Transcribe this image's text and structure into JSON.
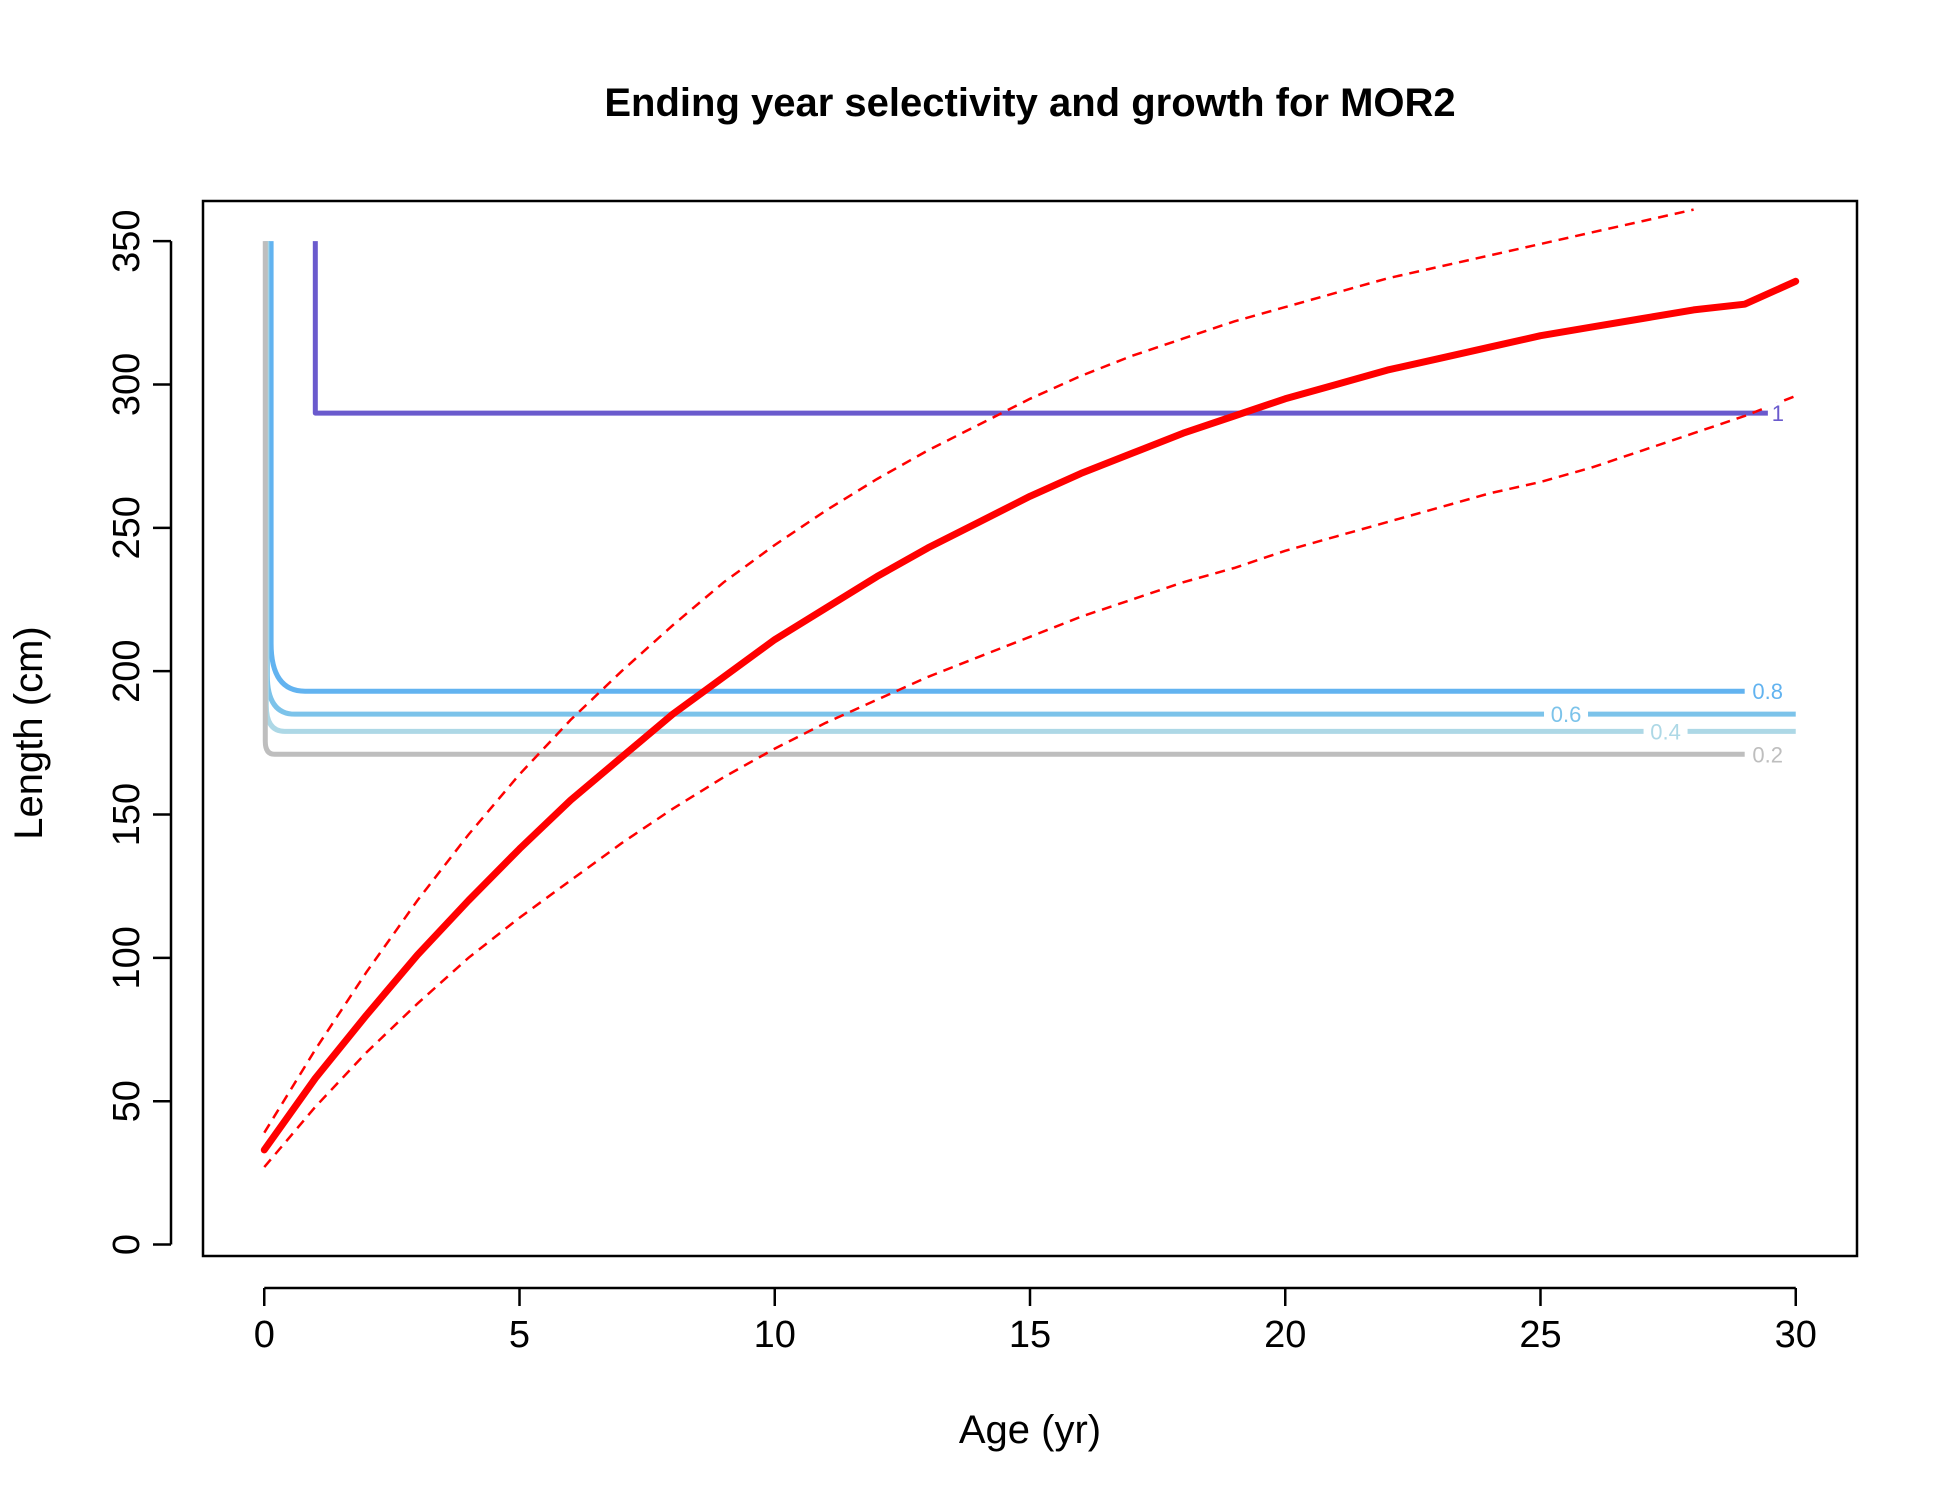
{
  "chart_data": {
    "type": "line",
    "title": "Ending year selectivity and growth for MOR2",
    "xlabel": "Age (yr)",
    "ylabel": "Length (cm)",
    "xlim": [
      -1.2,
      31.2
    ],
    "ylim": [
      -4,
      364
    ],
    "x_ticks": [
      0,
      5,
      10,
      15,
      20,
      25,
      30
    ],
    "y_ticks": [
      0,
      50,
      100,
      150,
      200,
      250,
      300,
      350
    ],
    "grid": false,
    "legend": "none",
    "growth_mean": {
      "color": "#ff0000",
      "points": [
        [
          0,
          33
        ],
        [
          1,
          58
        ],
        [
          2,
          80
        ],
        [
          3,
          101
        ],
        [
          4,
          120
        ],
        [
          5,
          138
        ],
        [
          6,
          155
        ],
        [
          7,
          170
        ],
        [
          8,
          185
        ],
        [
          9,
          198
        ],
        [
          10,
          211
        ],
        [
          11,
          222
        ],
        [
          12,
          233
        ],
        [
          13,
          243
        ],
        [
          14,
          252
        ],
        [
          15,
          261
        ],
        [
          16,
          269
        ],
        [
          17,
          276
        ],
        [
          18,
          283
        ],
        [
          19,
          289
        ],
        [
          20,
          295
        ],
        [
          21,
          300
        ],
        [
          22,
          305
        ],
        [
          23,
          309
        ],
        [
          24,
          313
        ],
        [
          25,
          317
        ],
        [
          26,
          320
        ],
        [
          27,
          323
        ],
        [
          28,
          326
        ],
        [
          29,
          328
        ],
        [
          30,
          336
        ]
      ]
    },
    "growth_upper": {
      "color": "#ff0000",
      "points": [
        [
          0,
          39
        ],
        [
          1,
          68
        ],
        [
          2,
          95
        ],
        [
          3,
          120
        ],
        [
          4,
          143
        ],
        [
          5,
          164
        ],
        [
          6,
          183
        ],
        [
          7,
          200
        ],
        [
          8,
          216
        ],
        [
          9,
          231
        ],
        [
          10,
          244
        ],
        [
          11,
          256
        ],
        [
          12,
          267
        ],
        [
          13,
          277
        ],
        [
          14,
          286
        ],
        [
          15,
          295
        ],
        [
          16,
          303
        ],
        [
          17,
          310
        ],
        [
          18,
          316
        ],
        [
          19,
          322
        ],
        [
          20,
          327
        ],
        [
          21,
          332
        ],
        [
          22,
          337
        ],
        [
          23,
          341
        ],
        [
          24,
          345
        ],
        [
          25,
          349
        ],
        [
          26,
          353
        ],
        [
          27,
          357
        ],
        [
          28,
          361
        ]
      ]
    },
    "growth_lower": {
      "color": "#ff0000",
      "points": [
        [
          0,
          27
        ],
        [
          1,
          48
        ],
        [
          2,
          67
        ],
        [
          3,
          84
        ],
        [
          4,
          100
        ],
        [
          5,
          114
        ],
        [
          6,
          127
        ],
        [
          7,
          140
        ],
        [
          8,
          152
        ],
        [
          9,
          163
        ],
        [
          10,
          173
        ],
        [
          11,
          182
        ],
        [
          12,
          190
        ],
        [
          13,
          198
        ],
        [
          14,
          205
        ],
        [
          15,
          212
        ],
        [
          16,
          219
        ],
        [
          17,
          225
        ],
        [
          18,
          231
        ],
        [
          19,
          236
        ],
        [
          20,
          242
        ],
        [
          21,
          247
        ],
        [
          22,
          252
        ],
        [
          23,
          257
        ],
        [
          24,
          262
        ],
        [
          25,
          266
        ],
        [
          26,
          271
        ],
        [
          27,
          277
        ],
        [
          28,
          283
        ],
        [
          29,
          289
        ],
        [
          30,
          296
        ]
      ]
    },
    "selectivity_contours": [
      {
        "label": "1",
        "color": "#6a5acd",
        "level": 290,
        "corner_age": 1.0,
        "end_age": 29.5,
        "label_age": 29.65
      },
      {
        "label": "0.8",
        "color": "#62b3f0",
        "level": 193,
        "corner_age": 0.8,
        "end_age": 29.0,
        "label_age": 29.45
      },
      {
        "label": "0.6",
        "color": "#7cc3ea",
        "level": 185,
        "corner_age": 0.6,
        "end_age": 30.0,
        "label_age": 25.5
      },
      {
        "label": "0.4",
        "color": "#add8e6",
        "level": 179,
        "corner_age": 0.4,
        "end_age": 30.0,
        "label_age": 27.45
      },
      {
        "label": "0.2",
        "color": "#bebebe",
        "level": 171,
        "corner_age": 0.2,
        "end_age": 29.0,
        "label_age": 29.45
      }
    ],
    "contour_top": 350
  }
}
